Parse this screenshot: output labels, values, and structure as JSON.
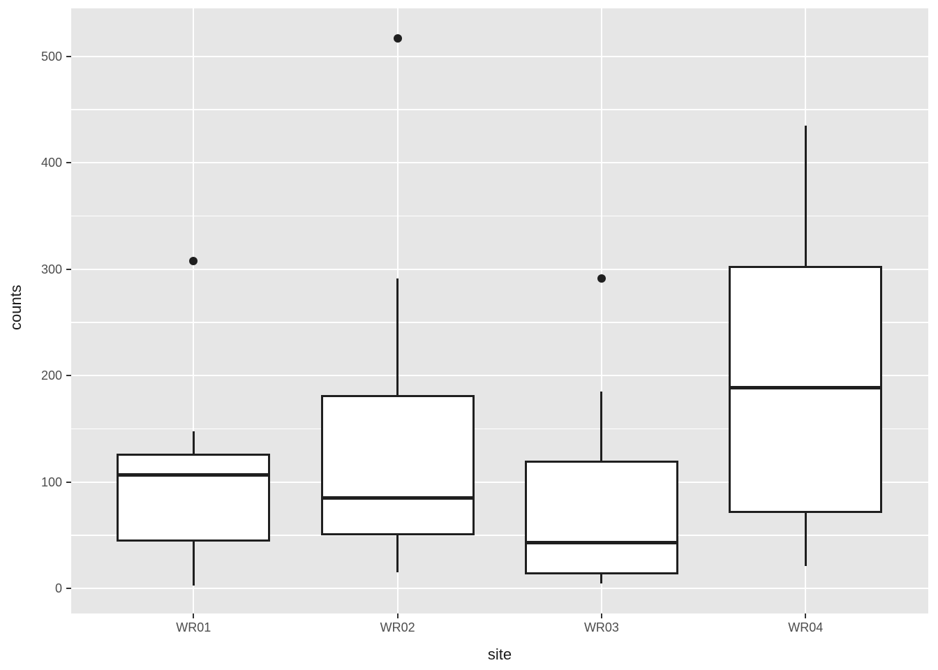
{
  "chart_data": {
    "type": "boxplot",
    "title": "",
    "xlabel": "site",
    "ylabel": "counts",
    "categories": [
      "WR01",
      "WR02",
      "WR03",
      "WR04"
    ],
    "series": [
      {
        "site": "WR01",
        "whisker_low": 3,
        "q1": 44,
        "median": 107,
        "q3": 127,
        "whisker_high": 148,
        "outliers": [
          308
        ]
      },
      {
        "site": "WR02",
        "whisker_low": 15,
        "q1": 50,
        "median": 85,
        "q3": 182,
        "whisker_high": 291,
        "outliers": [
          517
        ]
      },
      {
        "site": "WR03",
        "whisker_low": 5,
        "q1": 13,
        "median": 43,
        "q3": 120,
        "whisker_high": 185,
        "outliers": [
          291
        ]
      },
      {
        "site": "WR04",
        "whisker_low": 21,
        "q1": 71,
        "median": 189,
        "q3": 303,
        "whisker_high": 435,
        "outliers": []
      }
    ],
    "y_axis": {
      "major_ticks": [
        0,
        100,
        200,
        300,
        400,
        500
      ],
      "minor_ticks": [
        50,
        150,
        250,
        350,
        450
      ],
      "range": [
        -23,
        545
      ]
    },
    "grid": true,
    "legend": "none",
    "colors": {
      "panel_bg": "#E6E6E6",
      "grid": "#FFFFFF",
      "box_fill": "#FFFFFF",
      "line": "#1F1F1F",
      "tick_mark": "#333333",
      "tick_label": "#4D4D4D",
      "axis_title": "#1A1A1A",
      "outer_bg": "#FFFFFF"
    }
  }
}
